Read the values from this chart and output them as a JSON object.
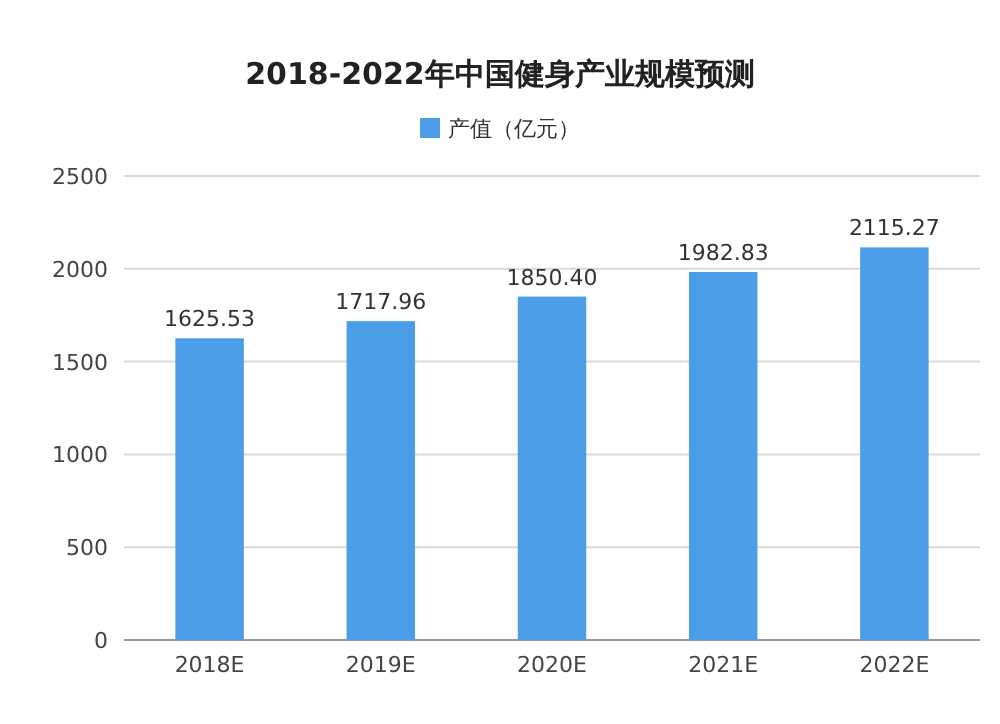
{
  "chart_data": {
    "type": "bar",
    "title": "2018-2022年中国健身产业规模预测",
    "categories": [
      "2018E",
      "2019E",
      "2020E",
      "2021E",
      "2022E"
    ],
    "series": [
      {
        "name": "产值（亿元）",
        "color": "#4a9de6",
        "values": [
          1625.53,
          1717.96,
          1850.4,
          1982.83,
          2115.27
        ],
        "value_labels": [
          "1625.53",
          "1717.96",
          "1850.40",
          "1982.83",
          "2115.27"
        ]
      }
    ],
    "ylim": [
      0,
      2500
    ],
    "yticks": [
      0,
      500,
      1000,
      1500,
      2000,
      2500
    ],
    "grid": "y",
    "legend": "top"
  }
}
